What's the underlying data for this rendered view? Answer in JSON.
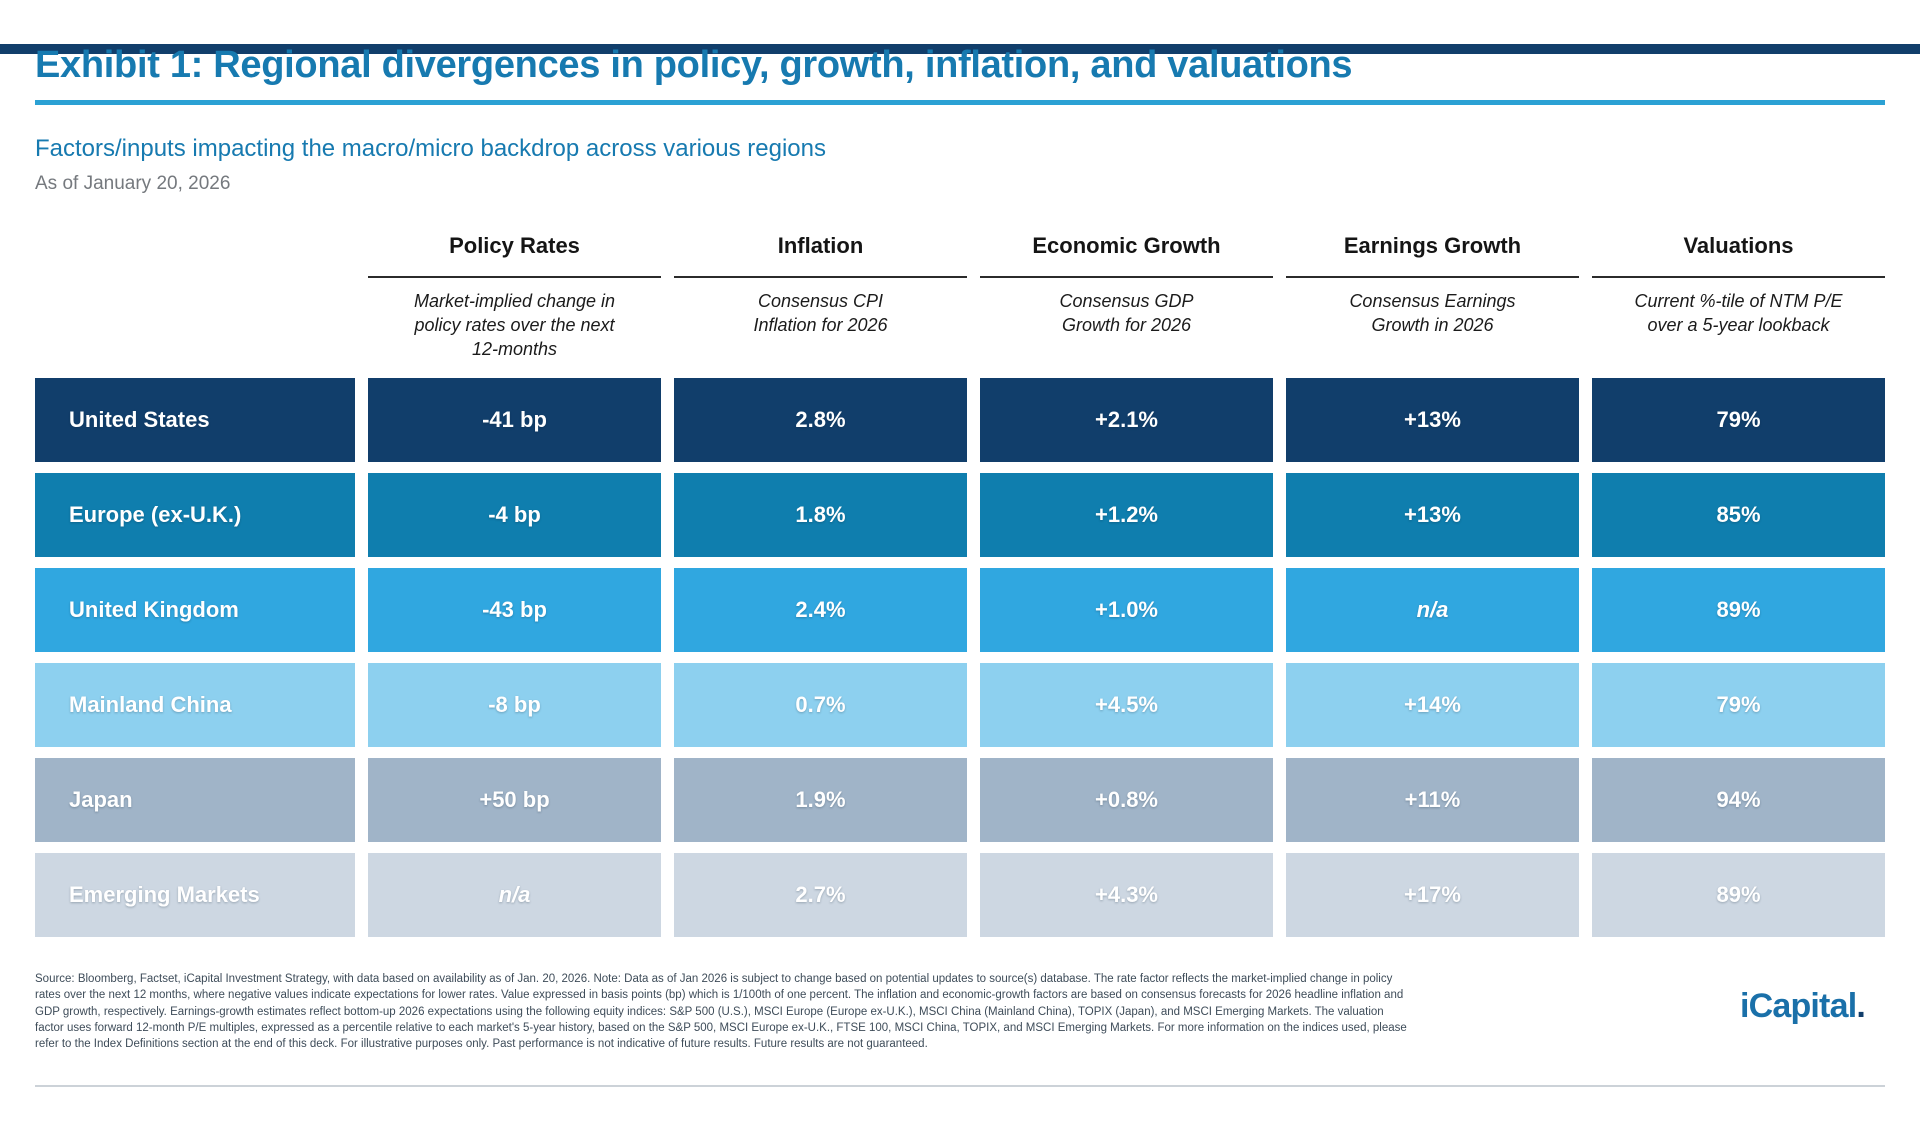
{
  "header": {
    "title": "Exhibit 1: Regional divergences in policy, growth, inflation, and valuations",
    "subtitle": "Factors/inputs impacting the macro/micro backdrop across various regions",
    "as_of": "As of January 20, 2026"
  },
  "chart_data": {
    "type": "table",
    "title": "Exhibit 1: Regional divergences in policy, growth, inflation, and valuations",
    "subtitle": "Factors/inputs impacting the macro/micro backdrop across various regions",
    "as_of_date": "January 20, 2026",
    "columns": [
      {
        "label": "Policy Rates",
        "sublabel": "Market-implied change in\npolicy rates over the next\n12-months"
      },
      {
        "label": "Inflation",
        "sublabel": "Consensus CPI\nInflation for 2026"
      },
      {
        "label": "Economic Growth",
        "sublabel": "Consensus GDP\nGrowth for 2026"
      },
      {
        "label": "Earnings Growth",
        "sublabel": "Consensus Earnings\nGrowth in 2026"
      },
      {
        "label": "Valuations",
        "sublabel": "Current %-tile of NTM P/E\nover a 5-year lookback"
      }
    ],
    "rows": [
      {
        "region": "United States",
        "color": "#113e6b",
        "values": [
          "-41 bp",
          "2.8%",
          "+2.1%",
          "+13%",
          "79%"
        ]
      },
      {
        "region": "Europe (ex-U.K.)",
        "color": "#0f7eae",
        "values": [
          "-4 bp",
          "1.8%",
          "+1.2%",
          "+13%",
          "85%"
        ]
      },
      {
        "region": "United Kingdom",
        "color": "#30a7e0",
        "values": [
          "-43 bp",
          "2.4%",
          "+1.0%",
          "n/a",
          "89%"
        ]
      },
      {
        "region": "Mainland China",
        "color": "#8dd0ef",
        "values": [
          "-8 bp",
          "0.7%",
          "+4.5%",
          "+14%",
          "79%"
        ]
      },
      {
        "region": "Japan",
        "color": "#a0b4c8",
        "values": [
          "+50 bp",
          "1.9%",
          "+0.8%",
          "+11%",
          "94%"
        ]
      },
      {
        "region": "Emerging Markets",
        "color": "#cdd7e2",
        "values": [
          "n/a",
          "2.7%",
          "+4.3%",
          "+17%",
          "89%"
        ]
      }
    ]
  },
  "footer": {
    "disclaimer": "Source: Bloomberg, Factset, iCapital Investment Strategy, with data based on availability as of Jan. 20, 2026. Note: Data as of Jan 2026 is subject to change based on potential updates to source(s) database. The rate factor reflects the market-implied change in policy rates over the next 12 months, where negative values indicate expectations for lower rates. Value expressed in basis points (bp) which is 1/100th of one percent. The inflation and economic-growth factors are based on consensus forecasts for 2026 headline inflation and GDP growth, respectively. Earnings-growth estimates reflect bottom-up 2026 expectations using the following equity indices: S&P 500 (U.S.), MSCI Europe (Europe ex-U.K.), MSCI China (Mainland China), TOPIX (Japan), and MSCI Emerging Markets. The valuation factor uses forward 12-month P/E multiples, expressed as a percentile relative to each market's 5-year history, based on the S&P 500, MSCI Europe ex-U.K., FTSE 100, MSCI China, TOPIX, and MSCI Emerging Markets. For more information on the indices used, please refer to the Index Definitions section at the end of this deck. For illustrative purposes only. Past performance is not indicative of future results. Future results are not guaranteed.",
    "logo_text": "iCapital",
    "logo_dot": "."
  },
  "colors": {
    "top_bar": "#113e6b",
    "title_blue": "#177ab0",
    "title_rule_blue": "#2ba1d4",
    "date_gray": "#75797e",
    "cell_text": "#ffffff",
    "footer_text": "#3e4c59",
    "logo_blue": "#1a70a9"
  }
}
